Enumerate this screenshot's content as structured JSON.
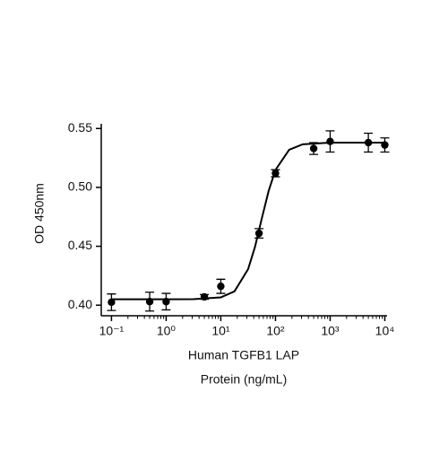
{
  "chart_data": {
    "type": "scatter",
    "ylabel": "OD 450nm",
    "xlabel": [
      "Human TGFB1 LAP",
      "Protein (ng/mL)"
    ],
    "xscale": "log",
    "xlim": [
      0.065,
      11000
    ],
    "xticks": [
      {
        "value": 0.1,
        "label": "10⁻¹"
      },
      {
        "value": 1,
        "label": "10⁰"
      },
      {
        "value": 10,
        "label": "10¹"
      },
      {
        "value": 100,
        "label": "10²"
      },
      {
        "value": 1000,
        "label": "10³"
      },
      {
        "value": 10000,
        "label": "10⁴"
      }
    ],
    "ylim": [
      0.391,
      0.554
    ],
    "yticks": [
      {
        "value": 0.4,
        "label": "0.40"
      },
      0.45,
      {
        "value": 0.5,
        "label": "0.50"
      },
      0.55
    ],
    "color": "#000000",
    "series": [
      {
        "x": [
          0.1,
          0.5,
          1,
          5,
          10,
          50,
          100,
          500,
          1000,
          5000,
          10000
        ],
        "values": [
          0.4025,
          0.403,
          0.403,
          0.407,
          0.416,
          0.461,
          0.512,
          0.533,
          0.539,
          0.538,
          0.536
        ],
        "errors": [
          0.007,
          0.008,
          0.007,
          0.002,
          0.006,
          0.004,
          0.003,
          0.005,
          0.009,
          0.008,
          0.006
        ]
      }
    ],
    "curve": {
      "x": [
        0.1,
        0.316,
        1,
        3.16,
        10,
        17.8,
        31.6,
        42.2,
        56.2,
        75,
        100,
        178,
        316,
        1000,
        3162,
        10000
      ],
      "values": [
        0.405,
        0.405,
        0.405,
        0.4051,
        0.4066,
        0.4117,
        0.4306,
        0.4495,
        0.4736,
        0.497,
        0.5148,
        0.532,
        0.5366,
        0.538,
        0.538,
        0.538
      ]
    }
  }
}
